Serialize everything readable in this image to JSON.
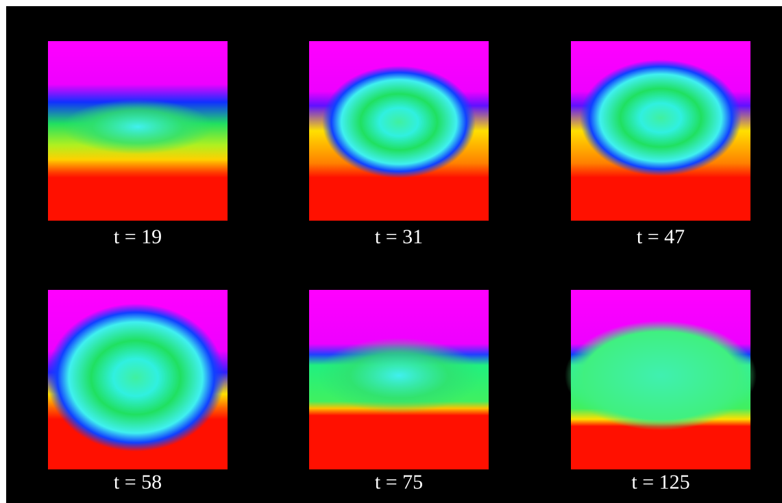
{
  "panels": [
    {
      "label": "t = 19"
    },
    {
      "label": "t = 31"
    },
    {
      "label": "t = 47"
    },
    {
      "label": "t = 58"
    },
    {
      "label": "t = 75"
    },
    {
      "label": "t = 125"
    }
  ]
}
